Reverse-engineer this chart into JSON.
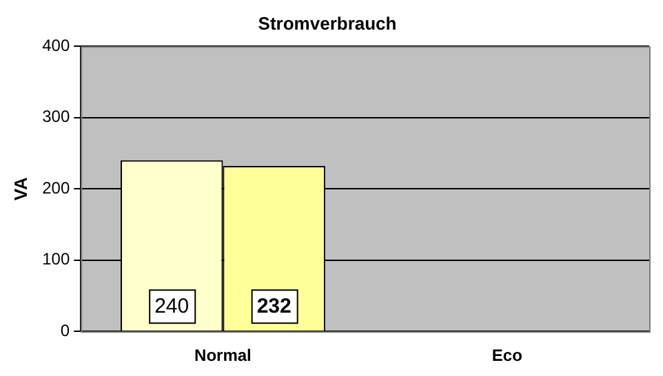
{
  "chart_data": {
    "type": "bar",
    "title": "Stromverbrauch",
    "ylabel": "VA",
    "categories": [
      "Normal",
      "Eco"
    ],
    "series": [
      {
        "color": "#ffffcc",
        "values": [
          240,
          null
        ]
      },
      {
        "color": "#ffff99",
        "values": [
          232,
          null
        ]
      }
    ],
    "ylim": [
      0,
      400
    ],
    "yticks": [
      0,
      100,
      200,
      300,
      400
    ],
    "grid": "y",
    "legend": false,
    "data_labels": true
  }
}
